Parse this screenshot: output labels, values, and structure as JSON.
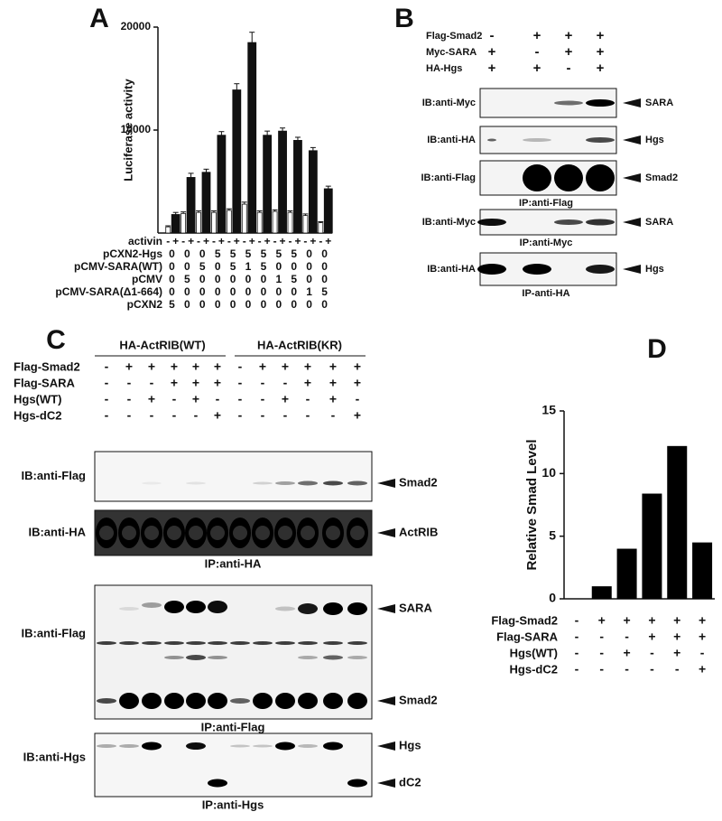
{
  "chart_data": [
    {
      "type": "bar",
      "panel": "A",
      "ylabel": "Luciferase activity",
      "ylim": [
        0,
        20000
      ],
      "yticks": [
        10000,
        20000
      ],
      "categories_label": "activin",
      "categories": [
        "-",
        "+",
        "-",
        "+",
        "-",
        "+",
        "-",
        "+",
        "-",
        "+",
        "-",
        "+",
        "-",
        "+",
        "-",
        "+",
        "-",
        "+",
        "-",
        "+",
        "-",
        "+"
      ],
      "values": [
        600,
        1800,
        1900,
        5400,
        2000,
        5900,
        2000,
        9500,
        2200,
        13900,
        2800,
        18500,
        2000,
        9500,
        2100,
        9900,
        2000,
        9000,
        1700,
        8000,
        1000,
        4300
      ],
      "errors": [
        100,
        200,
        150,
        400,
        150,
        300,
        150,
        350,
        150,
        600,
        200,
        1000,
        150,
        400,
        150,
        300,
        150,
        300,
        150,
        300,
        100,
        250
      ],
      "colors": [
        "#ffffff",
        "#111111"
      ],
      "conditions": [
        {
          "label": "pCXN2-Hgs",
          "values": [
            0,
            0,
            0,
            5,
            5,
            5,
            5,
            5,
            5,
            0,
            0
          ]
        },
        {
          "label": "pCMV-SARA(WT)",
          "values": [
            0,
            0,
            5,
            0,
            5,
            1,
            5,
            0,
            0,
            0,
            0
          ]
        },
        {
          "label": "pCMV",
          "values": [
            0,
            5,
            0,
            0,
            0,
            0,
            0,
            1,
            5,
            0,
            0
          ]
        },
        {
          "label": "pCMV-SARA(Δ1-664)",
          "values": [
            0,
            0,
            0,
            0,
            0,
            0,
            0,
            0,
            0,
            1,
            5
          ]
        },
        {
          "label": "pCXN2",
          "values": [
            5,
            0,
            0,
            0,
            0,
            0,
            0,
            0,
            0,
            0,
            0
          ]
        }
      ]
    },
    {
      "type": "bar",
      "panel": "D",
      "ylabel": "Relative Smad Level",
      "ylim": [
        0,
        15
      ],
      "yticks": [
        0,
        5,
        10,
        15
      ],
      "values": [
        0,
        1,
        4,
        8.4,
        12.2,
        4.5
      ],
      "color": "#000000",
      "rows": [
        {
          "label": "Flag-Smad2",
          "signs": [
            "-",
            "+",
            "+",
            "+",
            "+",
            "+"
          ]
        },
        {
          "label": "Flag-SARA",
          "signs": [
            "-",
            "-",
            "-",
            "+",
            "+",
            "+"
          ]
        },
        {
          "label": "Hgs(WT)",
          "signs": [
            "-",
            "-",
            "+",
            "-",
            "+",
            "-"
          ]
        },
        {
          "label": "Hgs-dC2",
          "signs": [
            "-",
            "-",
            "-",
            "-",
            "-",
            "+"
          ]
        }
      ]
    }
  ],
  "panel_b": {
    "panel": "B",
    "rows": [
      {
        "label": "Flag-Smad2",
        "signs": [
          "-",
          "+",
          "+",
          "+"
        ]
      },
      {
        "label": "Myc-SARA",
        "signs": [
          "+",
          "-",
          "+",
          "+"
        ]
      },
      {
        "label": "HA-Hgs",
        "signs": [
          "+",
          "+",
          "-",
          "+"
        ]
      }
    ],
    "blots": [
      {
        "ib": "IB:anti-Myc",
        "target": "SARA"
      },
      {
        "ib": "IB:anti-HA",
        "target": "Hgs"
      },
      {
        "ib": "IB:anti-Flag",
        "target": "Smad2",
        "ip": "IP:anti-Flag"
      },
      {
        "ib": "IB:anti-Myc",
        "target": "SARA",
        "ip": "IP:anti-Myc"
      },
      {
        "ib": "IB:anti-HA",
        "target": "Hgs",
        "ip": "IP-anti-HA"
      }
    ]
  },
  "panel_c": {
    "panel": "C",
    "groups": [
      "HA-ActRIB(WT)",
      "HA-ActRIB(KR)"
    ],
    "rows": [
      {
        "label": "Flag-Smad2",
        "signs": [
          "-",
          "+",
          "+",
          "+",
          "+",
          "+",
          "-",
          "+",
          "+",
          "+",
          "+",
          "+"
        ]
      },
      {
        "label": "Flag-SARA",
        "signs": [
          "-",
          "-",
          "-",
          "+",
          "+",
          "+",
          "-",
          "-",
          "-",
          "+",
          "+",
          "+"
        ]
      },
      {
        "label": "Hgs(WT)",
        "signs": [
          "-",
          "-",
          "+",
          "-",
          "+",
          "-",
          "-",
          "-",
          "+",
          "-",
          "+",
          "-"
        ]
      },
      {
        "label": "Hgs-dC2",
        "signs": [
          "-",
          "-",
          "-",
          "-",
          "-",
          "+",
          "-",
          "-",
          "-",
          "-",
          "-",
          "+"
        ]
      }
    ],
    "blots": [
      {
        "ib": "IB:anti-Flag",
        "targets": [
          "Smad2"
        ]
      },
      {
        "ib": "IB:anti-HA",
        "targets": [
          "ActRIB"
        ],
        "ip": "IP:anti-HA"
      },
      {
        "ib": "IB:anti-Flag",
        "targets": [
          "SARA",
          "Smad2"
        ],
        "ip": "IP:anti-Flag"
      },
      {
        "ib": "IB:anti-Hgs",
        "targets": [
          "Hgs",
          "dC2"
        ],
        "ip": "IP:anti-Hgs"
      }
    ]
  }
}
